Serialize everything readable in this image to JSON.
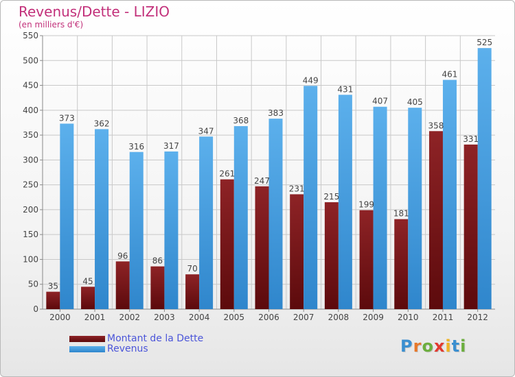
{
  "title": "Revenus/Dette - LIZIO",
  "subtitle": "(en milliers d'€)",
  "chart_data": {
    "type": "bar",
    "categories": [
      "2000",
      "2001",
      "2002",
      "2003",
      "2004",
      "2005",
      "2006",
      "2007",
      "2008",
      "2009",
      "2010",
      "2011",
      "2012"
    ],
    "series": [
      {
        "name": "Montant de la Dette",
        "color": "#7a1518",
        "values": [
          35,
          45,
          96,
          86,
          70,
          261,
          247,
          231,
          215,
          199,
          181,
          358,
          331
        ]
      },
      {
        "name": "Revenus",
        "color": "#3f97db",
        "values": [
          373,
          362,
          316,
          317,
          347,
          368,
          383,
          449,
          431,
          407,
          405,
          461,
          525
        ]
      }
    ],
    "ylim": [
      0,
      550
    ],
    "yticks": [
      0,
      50,
      100,
      150,
      200,
      250,
      300,
      350,
      400,
      450,
      500,
      550
    ],
    "grid": true,
    "legend": "bottom-left"
  },
  "logo": {
    "letters": [
      {
        "ch": "P",
        "color": "#3b8fd0"
      },
      {
        "ch": "r",
        "color": "#e7782a"
      },
      {
        "ch": "o",
        "color": "#6cae3e"
      },
      {
        "ch": "x",
        "color": "#e23a2f"
      },
      {
        "ch": "i",
        "color": "#f0b323"
      },
      {
        "ch": "t",
        "color": "#3b8fd0"
      },
      {
        "ch": "i",
        "color": "#6cae3e"
      }
    ]
  }
}
